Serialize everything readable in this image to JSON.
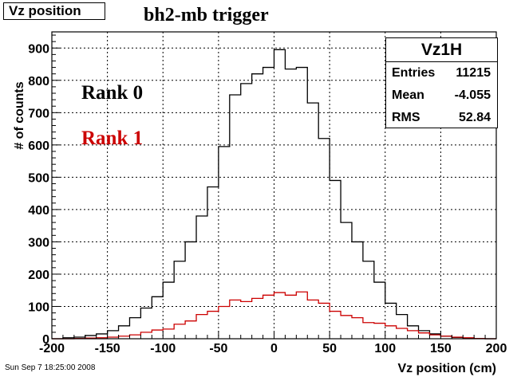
{
  "canvas_title": "Vz position",
  "footer_date": "Sun Sep  7 18:25:00 2008",
  "stats_box": {
    "name": "Vz1H",
    "rows": [
      {
        "label": "Entries",
        "value": "11215"
      },
      {
        "label": "Mean",
        "value": "-4.055"
      },
      {
        "label": "RMS",
        "value": "52.84"
      }
    ]
  },
  "chart_data": {
    "type": "line",
    "title": "bh2-mb trigger",
    "xlabel": "Vz position (cm)",
    "ylabel": "# of counts",
    "xlim": [
      -200,
      200
    ],
    "ylim": [
      0,
      950
    ],
    "grid": true,
    "x_ticks": [
      "-200",
      "-150",
      "-100",
      "-50",
      "0",
      "50",
      "100",
      "150",
      "200"
    ],
    "y_ticks": [
      "0",
      "100",
      "200",
      "300",
      "400",
      "500",
      "600",
      "700",
      "800",
      "900"
    ],
    "bin_edges": [
      -200,
      -190,
      -180,
      -170,
      -160,
      -150,
      -140,
      -130,
      -120,
      -110,
      -100,
      -90,
      -80,
      -70,
      -60,
      -50,
      -40,
      -30,
      -20,
      -10,
      0,
      10,
      20,
      30,
      40,
      50,
      60,
      70,
      80,
      90,
      100,
      110,
      120,
      130,
      140,
      150,
      160,
      170,
      180,
      190,
      200
    ],
    "annotations": [
      {
        "text": "Rank 0",
        "color": "#000000"
      },
      {
        "text": "Rank 1",
        "color": "#cc0000"
      }
    ],
    "series": [
      {
        "name": "Rank 0",
        "color": "#000000",
        "values": [
          0,
          3,
          5,
          10,
          15,
          25,
          40,
          65,
          95,
          130,
          175,
          240,
          300,
          380,
          470,
          595,
          755,
          790,
          820,
          840,
          895,
          835,
          840,
          730,
          620,
          490,
          360,
          300,
          240,
          175,
          110,
          75,
          40,
          25,
          15,
          8,
          4,
          2,
          1,
          0
        ]
      },
      {
        "name": "Rank 1",
        "color": "#cc0000",
        "values": [
          0,
          0,
          1,
          2,
          3,
          5,
          8,
          12,
          20,
          27,
          30,
          45,
          55,
          75,
          85,
          100,
          120,
          115,
          125,
          135,
          143,
          135,
          145,
          120,
          110,
          85,
          72,
          65,
          50,
          48,
          40,
          32,
          25,
          18,
          12,
          8,
          5,
          3,
          1,
          0
        ]
      }
    ]
  }
}
